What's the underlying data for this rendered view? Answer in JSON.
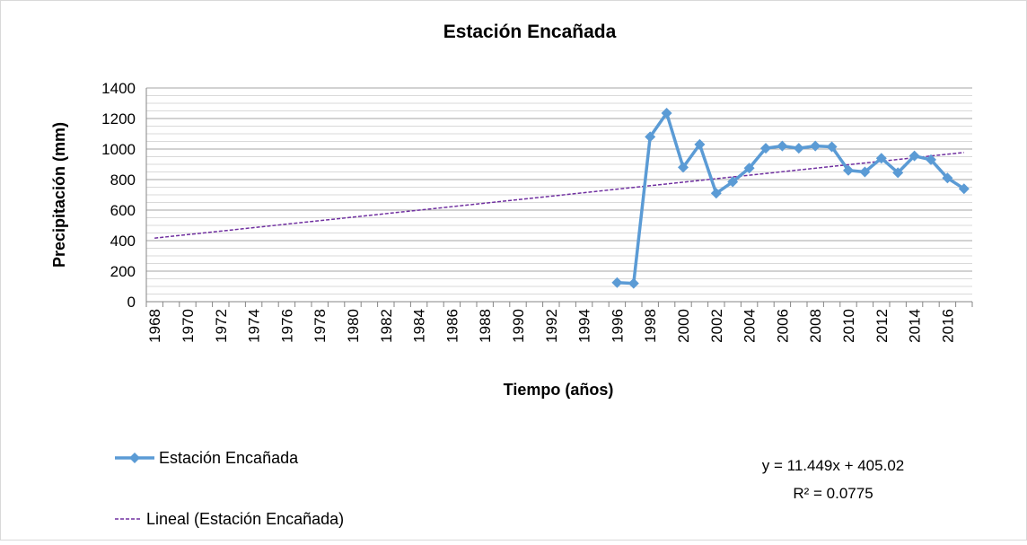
{
  "chart_data": {
    "type": "line",
    "title": "Estación Encañada",
    "xlabel": "Tiempo (años)",
    "ylabel": "Precipitación (mm)",
    "categories": [
      "1968",
      null,
      "1970",
      null,
      "1972",
      null,
      "1974",
      null,
      "1976",
      null,
      "1978",
      null,
      "1980",
      null,
      "1982",
      null,
      "1984",
      null,
      "1986",
      null,
      "1988",
      null,
      "1990",
      null,
      "1992",
      null,
      "1994",
      null,
      "1996",
      null,
      "1998",
      null,
      "2000",
      null,
      "2002",
      null,
      "2004",
      null,
      "2006",
      null,
      "2008",
      null,
      "2010",
      null,
      "2012",
      null,
      "2014",
      null,
      "2016",
      null
    ],
    "series": [
      {
        "name": "Estación Encañada",
        "color": "#5b9bd5",
        "values": [
          null,
          null,
          null,
          null,
          null,
          null,
          null,
          null,
          null,
          null,
          null,
          null,
          null,
          null,
          null,
          null,
          null,
          null,
          null,
          null,
          null,
          null,
          null,
          null,
          null,
          null,
          null,
          null,
          125,
          120,
          1080,
          1235,
          880,
          1030,
          710,
          785,
          875,
          1005,
          1020,
          1005,
          1020,
          1015,
          860,
          850,
          940,
          845,
          955,
          930,
          810,
          740
        ]
      }
    ],
    "trendline": {
      "name": "Lineal (Estación Encañada)",
      "color": "#7030a0",
      "slope": 11.449,
      "intercept": 405.02,
      "equation": "y = 11.449x + 405.02",
      "r2": "R² = 0.0775"
    },
    "ylim": [
      0,
      1400
    ],
    "yticks": [
      0,
      200,
      400,
      600,
      800,
      1000,
      1200,
      1400
    ],
    "minor_yticks": [
      50,
      100,
      150,
      250,
      300,
      350,
      450,
      500,
      550,
      650,
      700,
      750,
      850,
      900,
      950,
      1050,
      1100,
      1150,
      1250,
      1300,
      1350
    ],
    "grid": true,
    "legend": "bottom-left"
  }
}
